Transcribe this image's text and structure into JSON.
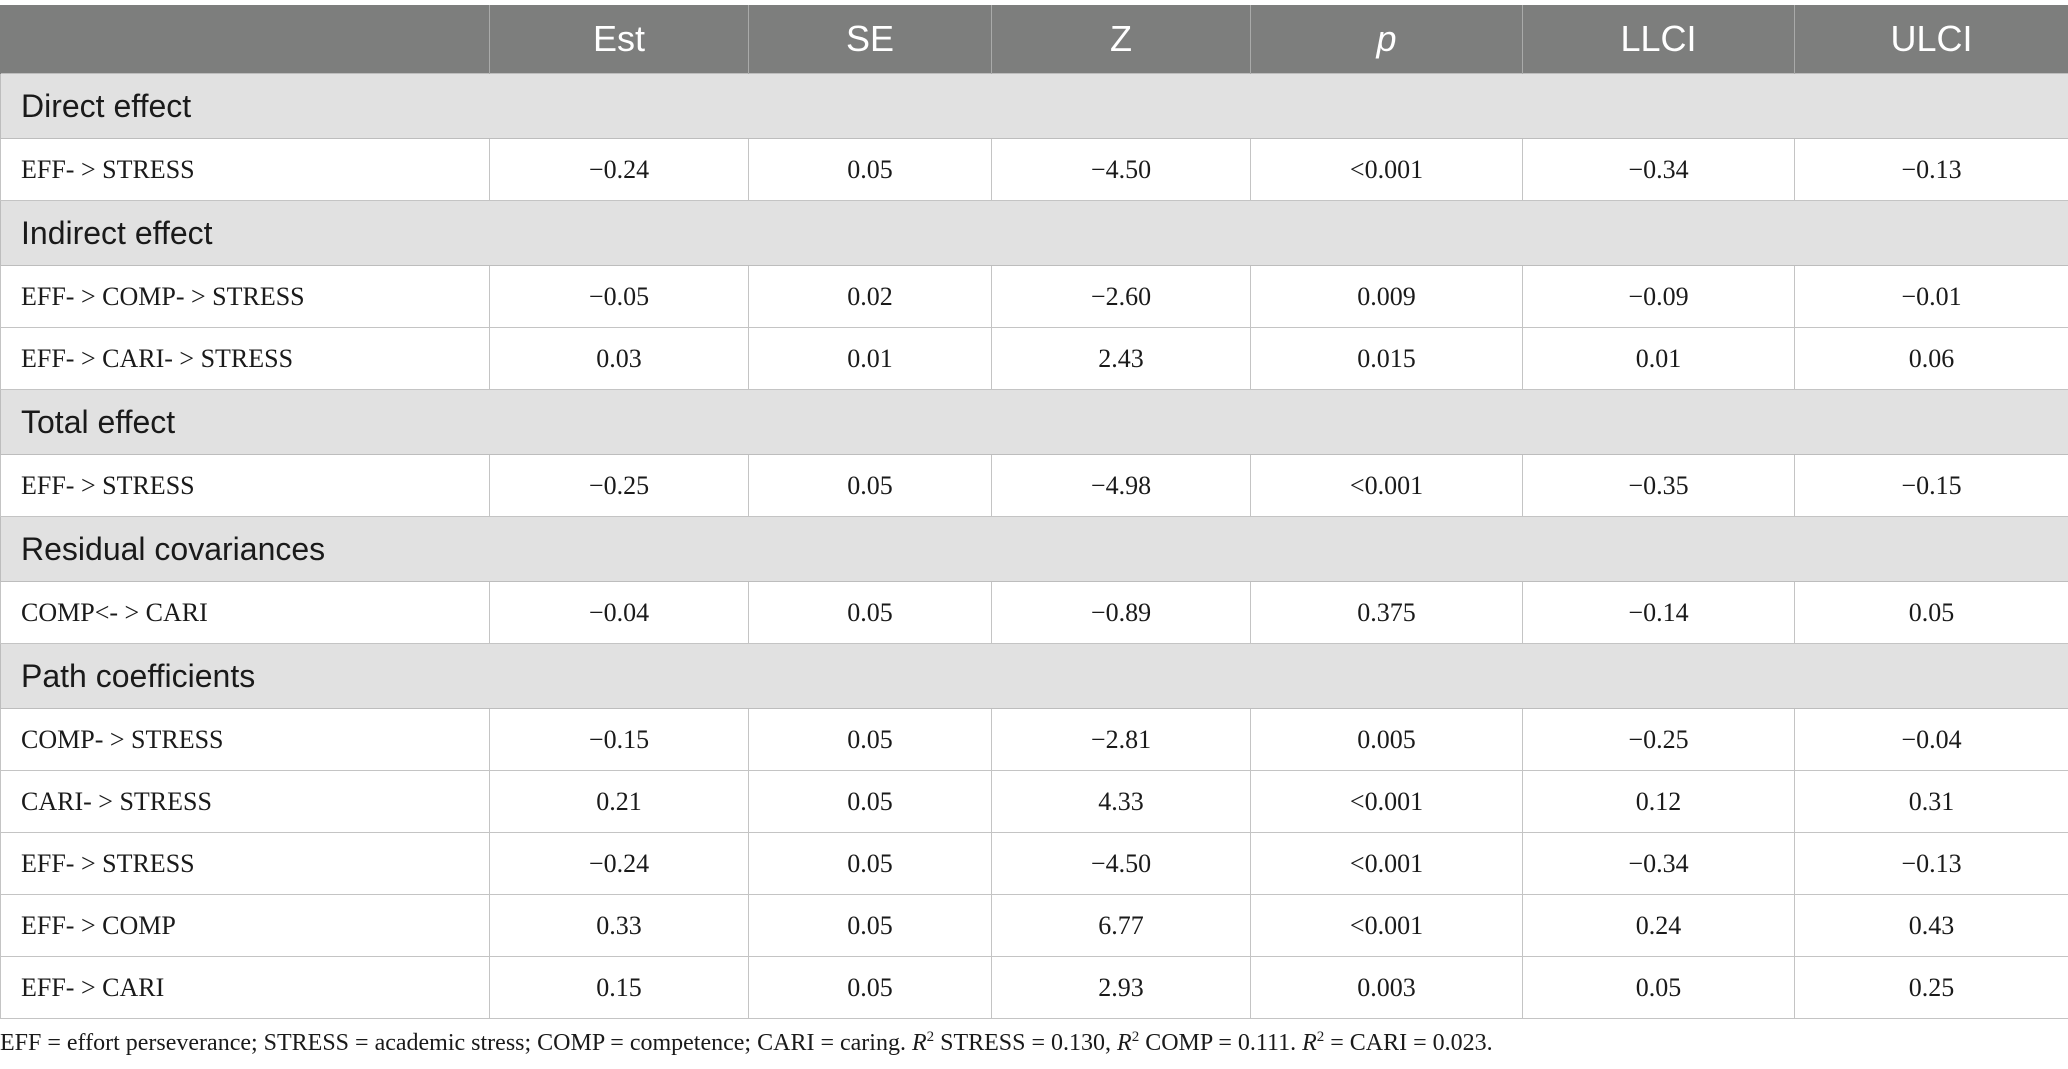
{
  "table": {
    "headers": [
      "",
      "Est",
      "SE",
      "Z",
      "p",
      "LLCI",
      "ULCI"
    ],
    "sections": [
      {
        "title": "Direct effect",
        "rows": [
          {
            "label": "EFF- > STRESS",
            "values": [
              "−0.24",
              "0.05",
              "−4.50",
              "<0.001",
              "−0.34",
              "−0.13"
            ]
          }
        ]
      },
      {
        "title": "Indirect effect",
        "rows": [
          {
            "label": "EFF- > COMP- > STRESS",
            "values": [
              "−0.05",
              "0.02",
              "−2.60",
              "0.009",
              "−0.09",
              "−0.01"
            ]
          },
          {
            "label": "EFF- > CARI- > STRESS",
            "values": [
              "0.03",
              "0.01",
              "2.43",
              "0.015",
              "0.01",
              "0.06"
            ]
          }
        ]
      },
      {
        "title": "Total effect",
        "rows": [
          {
            "label": "EFF- > STRESS",
            "values": [
              "−0.25",
              "0.05",
              "−4.98",
              "<0.001",
              "−0.35",
              "−0.15"
            ]
          }
        ]
      },
      {
        "title": "Residual covariances",
        "rows": [
          {
            "label": "COMP<- > CARI",
            "values": [
              "−0.04",
              "0.05",
              "−0.89",
              "0.375",
              "−0.14",
              "0.05"
            ]
          }
        ]
      },
      {
        "title": "Path coefficients",
        "rows": [
          {
            "label": "COMP- > STRESS",
            "values": [
              "−0.15",
              "0.05",
              "−2.81",
              "0.005",
              "−0.25",
              "−0.04"
            ]
          },
          {
            "label": "CARI- > STRESS",
            "values": [
              "0.21",
              "0.05",
              "4.33",
              "<0.001",
              "0.12",
              "0.31"
            ]
          },
          {
            "label": "EFF- > STRESS",
            "values": [
              "−0.24",
              "0.05",
              "−4.50",
              "<0.001",
              "−0.34",
              "−0.13"
            ]
          },
          {
            "label": "EFF- > COMP",
            "values": [
              "0.33",
              "0.05",
              "6.77",
              "<0.001",
              "0.24",
              "0.43"
            ]
          },
          {
            "label": "EFF- > CARI",
            "values": [
              "0.15",
              "0.05",
              "2.93",
              "0.003",
              "0.05",
              "0.25"
            ]
          }
        ]
      }
    ]
  },
  "footnote": {
    "part1": "EFF = effort perseverance; STRESS = academic stress; COMP = competence; CARI = caring. ",
    "r": "R",
    "sup": "2",
    "part2": " STRESS = 0.130, ",
    "part3": " COMP = 0.111. ",
    "part4": " = CARI = 0.023."
  }
}
